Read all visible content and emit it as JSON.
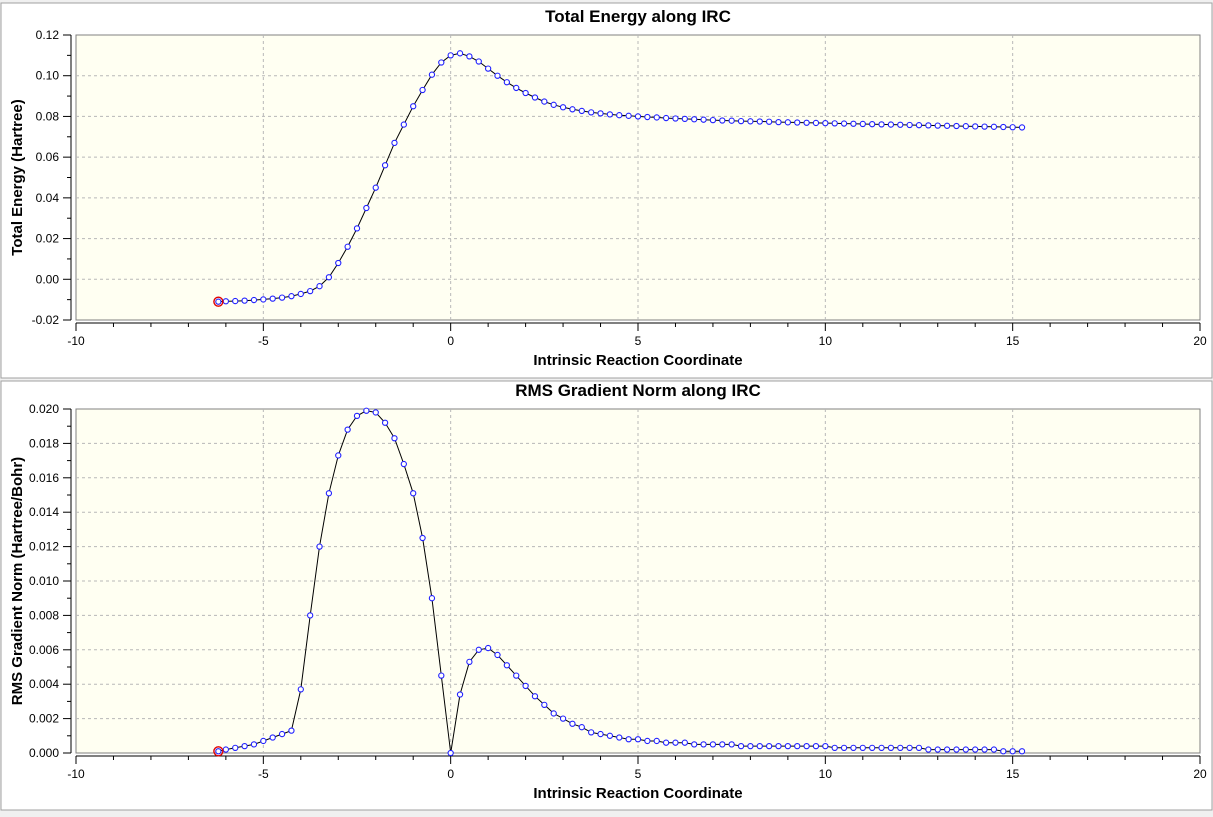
{
  "chart_data": [
    {
      "type": "line",
      "title": "Total Energy along IRC",
      "xlabel": "Intrinsic Reaction Coordinate",
      "ylabel": "Total Energy (Hartree)",
      "xlim": [
        -10,
        20
      ],
      "ylim": [
        -0.02,
        0.12
      ],
      "xticks": [
        "-10",
        "-5",
        "0",
        "5",
        "10",
        "15",
        "20"
      ],
      "yticks": [
        "-0.02",
        "0.00",
        "0.02",
        "0.04",
        "0.06",
        "0.08",
        "0.10",
        "0.12"
      ],
      "grid": true,
      "series": [
        {
          "x": [
            -6.2,
            -6.0,
            -5.75,
            -5.5,
            -5.25,
            -5.0,
            -4.75,
            -4.5,
            -4.25,
            -4.0,
            -3.75,
            -3.5,
            -3.25,
            -3.0,
            -2.75,
            -2.5,
            -2.25,
            -2.0,
            -1.75,
            -1.5,
            -1.25,
            -1.0,
            -0.75,
            -0.5,
            -0.25,
            0.0,
            0.25,
            0.5,
            0.75,
            1.0,
            1.25,
            1.5,
            1.75,
            2.0,
            2.25,
            2.5,
            2.75,
            3.0,
            3.25,
            3.5,
            3.75,
            4.0,
            4.25,
            4.5,
            4.75,
            5.0,
            5.25,
            5.5,
            5.75,
            6.0,
            6.25,
            6.5,
            6.75,
            7.0,
            7.25,
            7.5,
            7.75,
            8.0,
            8.25,
            8.5,
            8.75,
            9.0,
            9.25,
            9.5,
            9.75,
            10.0,
            10.25,
            10.5,
            10.75,
            11.0,
            11.25,
            11.5,
            11.75,
            12.0,
            12.25,
            12.5,
            12.75,
            13.0,
            13.25,
            13.5,
            13.75,
            14.0,
            14.25,
            14.5,
            14.75,
            15.0,
            15.25
          ],
          "y": [
            -0.011,
            -0.0108,
            -0.0107,
            -0.0105,
            -0.0102,
            -0.0099,
            -0.0095,
            -0.009,
            -0.0083,
            -0.0072,
            -0.0058,
            -0.0034,
            0.001,
            0.008,
            0.016,
            0.025,
            0.035,
            0.045,
            0.056,
            0.067,
            0.076,
            0.085,
            0.093,
            0.1005,
            0.1065,
            0.11,
            0.111,
            0.1095,
            0.107,
            0.1035,
            0.1,
            0.0968,
            0.094,
            0.0915,
            0.0893,
            0.0873,
            0.0857,
            0.0845,
            0.0835,
            0.0827,
            0.082,
            0.0815,
            0.081,
            0.0806,
            0.0803,
            0.08,
            0.0797,
            0.0795,
            0.0792,
            0.079,
            0.0788,
            0.0786,
            0.0784,
            0.0782,
            0.078,
            0.0779,
            0.0777,
            0.0776,
            0.0775,
            0.0774,
            0.0772,
            0.0771,
            0.077,
            0.0769,
            0.0768,
            0.0767,
            0.0766,
            0.0765,
            0.0764,
            0.0763,
            0.0762,
            0.0761,
            0.076,
            0.0759,
            0.0758,
            0.0757,
            0.0756,
            0.0755,
            0.0754,
            0.0753,
            0.0752,
            0.0751,
            0.075,
            0.0749,
            0.0748,
            0.0747,
            0.0746
          ]
        }
      ]
    },
    {
      "type": "line",
      "title": "RMS Gradient Norm along IRC",
      "xlabel": "Intrinsic Reaction Coordinate",
      "ylabel": "RMS Gradient Norm (Hartree/Bohr)",
      "xlim": [
        -10,
        20
      ],
      "ylim": [
        0,
        0.02
      ],
      "xticks": [
        "-10",
        "-5",
        "0",
        "5",
        "10",
        "15",
        "20"
      ],
      "yticks": [
        "0.000",
        "0.002",
        "0.004",
        "0.006",
        "0.008",
        "0.010",
        "0.012",
        "0.014",
        "0.016",
        "0.018",
        "0.020"
      ],
      "grid": true,
      "series": [
        {
          "x": [
            -6.2,
            -6.0,
            -5.75,
            -5.5,
            -5.25,
            -5.0,
            -4.75,
            -4.5,
            -4.25,
            -4.0,
            -3.75,
            -3.5,
            -3.25,
            -3.0,
            -2.75,
            -2.5,
            -2.25,
            -2.0,
            -1.75,
            -1.5,
            -1.25,
            -1.0,
            -0.75,
            -0.5,
            -0.25,
            0.0,
            0.25,
            0.5,
            0.75,
            1.0,
            1.25,
            1.5,
            1.75,
            2.0,
            2.25,
            2.5,
            2.75,
            3.0,
            3.25,
            3.5,
            3.75,
            4.0,
            4.25,
            4.5,
            4.75,
            5.0,
            5.25,
            5.5,
            5.75,
            6.0,
            6.25,
            6.5,
            6.75,
            7.0,
            7.25,
            7.5,
            7.75,
            8.0,
            8.25,
            8.5,
            8.75,
            9.0,
            9.25,
            9.5,
            9.75,
            10.0,
            10.25,
            10.5,
            10.75,
            11.0,
            11.25,
            11.5,
            11.75,
            12.0,
            12.25,
            12.5,
            12.75,
            13.0,
            13.25,
            13.5,
            13.75,
            14.0,
            14.25,
            14.5,
            14.75,
            15.0,
            15.25
          ],
          "y": [
            0.0001,
            0.0002,
            0.0003,
            0.0004,
            0.0005,
            0.0007,
            0.0009,
            0.0011,
            0.0013,
            0.0037,
            0.008,
            0.012,
            0.0151,
            0.0173,
            0.0188,
            0.0196,
            0.0199,
            0.0198,
            0.0192,
            0.0183,
            0.0168,
            0.0151,
            0.0125,
            0.009,
            0.0045,
            0.0,
            0.0034,
            0.0053,
            0.006,
            0.0061,
            0.0057,
            0.0051,
            0.0045,
            0.0039,
            0.0033,
            0.0028,
            0.0023,
            0.002,
            0.0017,
            0.0015,
            0.0012,
            0.0011,
            0.001,
            0.0009,
            0.0008,
            0.0008,
            0.0007,
            0.0007,
            0.0006,
            0.0006,
            0.0006,
            0.0005,
            0.0005,
            0.0005,
            0.0005,
            0.0005,
            0.0004,
            0.0004,
            0.0004,
            0.0004,
            0.0004,
            0.0004,
            0.0004,
            0.0004,
            0.0004,
            0.0004,
            0.0003,
            0.0003,
            0.0003,
            0.0003,
            0.0003,
            0.0003,
            0.0003,
            0.0003,
            0.0003,
            0.0003,
            0.0002,
            0.0002,
            0.0002,
            0.0002,
            0.0002,
            0.0002,
            0.0002,
            0.0002,
            0.0001,
            0.0001,
            0.0001
          ]
        }
      ]
    }
  ]
}
